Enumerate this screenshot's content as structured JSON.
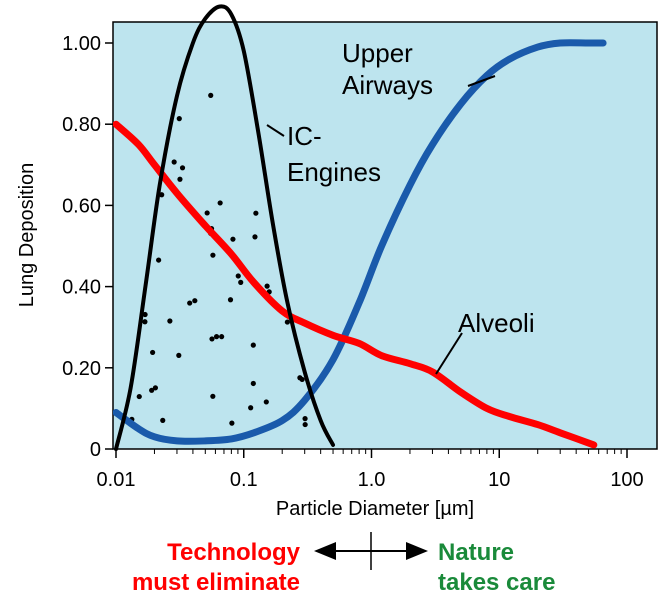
{
  "chart_data": {
    "type": "line",
    "x_scale": "log",
    "xlabel": "Particle Diameter [µm]",
    "ylabel": "Lung Deposition",
    "xlim": [
      0.01,
      100
    ],
    "ylim": [
      0,
      1.0
    ],
    "x_ticks": [
      0.01,
      0.1,
      1.0,
      10,
      100
    ],
    "x_tick_labels": [
      "0.01",
      "0.1",
      "1.0",
      "10",
      "100"
    ],
    "y_ticks": [
      0,
      0.2,
      0.4,
      0.6,
      0.8,
      1.0
    ],
    "y_tick_labels": [
      "0",
      "0.20",
      "0.40",
      "0.60",
      "0.80",
      "1.00"
    ],
    "background_color": "#bde4ee",
    "grid": false,
    "series": [
      {
        "name": "Upper Airways",
        "color": "#1a5aab",
        "x": [
          0.01,
          0.015,
          0.02,
          0.03,
          0.05,
          0.08,
          0.12,
          0.2,
          0.3,
          0.5,
          0.8,
          1.2,
          2,
          3,
          5,
          8,
          12,
          20,
          30,
          50,
          65
        ],
        "y": [
          0.09,
          0.05,
          0.03,
          0.02,
          0.02,
          0.025,
          0.04,
          0.07,
          0.12,
          0.22,
          0.36,
          0.5,
          0.65,
          0.75,
          0.85,
          0.92,
          0.96,
          0.99,
          1.0,
          1.0,
          1.0
        ]
      },
      {
        "name": "Alveoli",
        "color": "#ff0000",
        "x": [
          0.01,
          0.015,
          0.02,
          0.03,
          0.05,
          0.08,
          0.12,
          0.2,
          0.3,
          0.5,
          0.8,
          1.2,
          2,
          3,
          5,
          8,
          12,
          20,
          30,
          55
        ],
        "y": [
          0.8,
          0.75,
          0.7,
          0.63,
          0.55,
          0.48,
          0.41,
          0.34,
          0.31,
          0.28,
          0.26,
          0.23,
          0.21,
          0.19,
          0.14,
          0.1,
          0.08,
          0.06,
          0.04,
          0.01
        ]
      },
      {
        "name": "IC-Engines",
        "color": "#000000",
        "x": [
          0.01,
          0.013,
          0.017,
          0.022,
          0.03,
          0.04,
          0.05,
          0.065,
          0.08,
          0.1,
          0.13,
          0.17,
          0.22,
          0.3,
          0.4,
          0.5
        ],
        "y": [
          0.0,
          0.15,
          0.4,
          0.65,
          0.87,
          1.0,
          1.06,
          1.09,
          1.07,
          0.98,
          0.78,
          0.55,
          0.36,
          0.19,
          0.07,
          0.01
        ]
      }
    ],
    "curve_labels": [
      {
        "lines": [
          "Upper",
          "Airways"
        ],
        "series": "Upper Airways"
      },
      {
        "lines": [
          "IC-",
          "Engines"
        ],
        "series": "IC-Engines"
      },
      {
        "lines": [
          "Alveoli"
        ],
        "series": "Alveoli"
      }
    ]
  },
  "footer": {
    "left_line1": "Technology",
    "left_line2": "must eliminate",
    "left_color": "#ff0000",
    "right_line1": "Nature",
    "right_line2": "takes care",
    "right_color": "#1a8a3a"
  }
}
